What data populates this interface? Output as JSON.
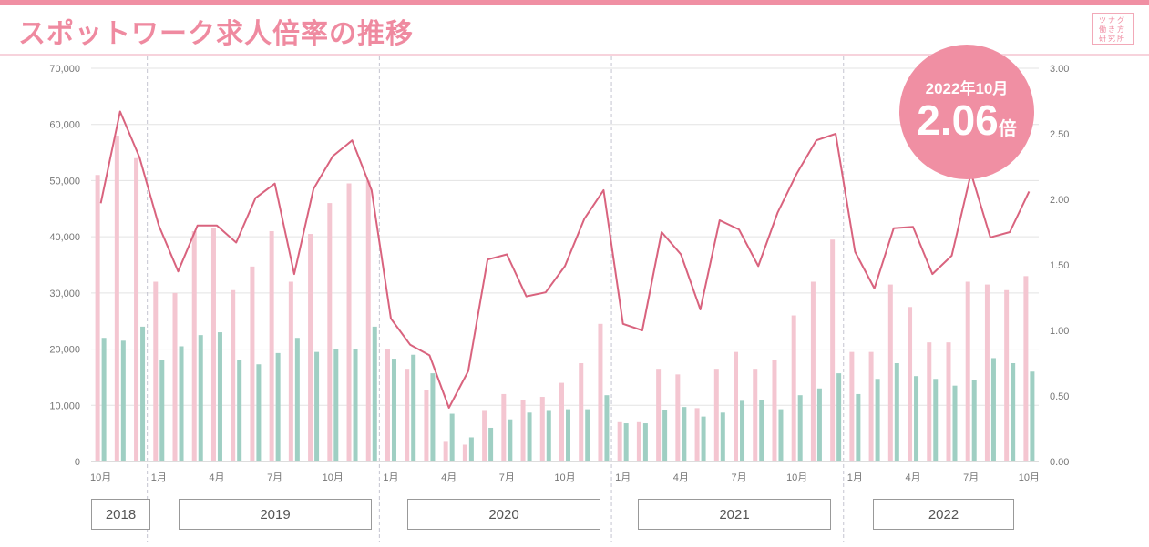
{
  "title": "スポットワーク求人倍率の推移",
  "logo_lines": [
    "ツナグ",
    "働き方",
    "研究所"
  ],
  "badge": {
    "period": "2022年10月",
    "value": "2.06",
    "unit": "倍"
  },
  "years": [
    "2018",
    "2019",
    "2020",
    "2021",
    "2022"
  ],
  "colors": {
    "accent": "#f08fa3",
    "bar1": "#f4c6d1",
    "bar2": "#9fcfc3",
    "line": "#d9637e"
  },
  "chart_data": {
    "type": "bar",
    "x_month_labels": [
      "10月",
      "",
      "",
      "1月",
      "",
      "",
      "4月",
      "",
      "",
      "7月",
      "",
      "",
      "10月",
      "",
      "",
      "1月",
      "",
      "",
      "4月",
      "",
      "",
      "7月",
      "",
      "",
      "10月",
      "",
      "",
      "1月",
      "",
      "",
      "4月",
      "",
      "",
      "7月",
      "",
      "",
      "10月",
      "",
      "",
      "1月",
      "",
      "",
      "4月",
      "",
      "",
      "7月",
      "",
      "",
      "10月"
    ],
    "left_axis": {
      "ylim": [
        0,
        70000
      ],
      "ticks": [
        "0",
        "10,000",
        "20,000",
        "30,000",
        "40,000",
        "50,000",
        "60,000",
        "70,000"
      ]
    },
    "right_axis": {
      "ylim": [
        0,
        3.0
      ],
      "ticks": [
        "0.00",
        "0.50",
        "1.00",
        "1.50",
        "2.00",
        "2.50",
        "3.00"
      ]
    },
    "series": [
      {
        "values": [
          51000,
          58000,
          54000,
          32000,
          30000,
          41000,
          41500,
          30500,
          34700,
          41000,
          32000,
          40500,
          46000,
          49500,
          50000,
          20000,
          16500,
          12800,
          3500,
          3000,
          9000,
          12000,
          11000,
          11500,
          14000,
          17500,
          24500,
          7000,
          7000,
          16500,
          15500,
          9500,
          16500,
          19500,
          16500,
          18000,
          26000,
          32000,
          39500,
          19500,
          19500,
          31500,
          27500,
          21200,
          21200,
          32000,
          31500,
          30500,
          33000
        ]
      },
      {
        "values": [
          22000,
          21500,
          24000,
          18000,
          20500,
          22500,
          23000,
          18000,
          17300,
          19300,
          22000,
          19500,
          20000,
          20000,
          24000,
          18300,
          19000,
          15700,
          8500,
          4300,
          6000,
          7500,
          8700,
          9000,
          9300,
          9300,
          11800,
          6800,
          6800,
          9200,
          9700,
          8000,
          8700,
          10800,
          11000,
          9300,
          11800,
          13000,
          15700,
          12000,
          14700,
          17500,
          15200,
          14700,
          13500,
          14500,
          18400,
          17500,
          16000
        ]
      },
      {
        "values": [
          1.97,
          2.67,
          2.32,
          1.8,
          1.45,
          1.8,
          1.8,
          1.67,
          2.01,
          2.12,
          1.43,
          2.08,
          2.33,
          2.45,
          2.07,
          1.09,
          0.89,
          0.81,
          0.41,
          0.69,
          1.54,
          1.58,
          1.26,
          1.29,
          1.49,
          1.85,
          2.07,
          1.05,
          1.0,
          1.75,
          1.58,
          1.16,
          1.84,
          1.77,
          1.49,
          1.9,
          2.2,
          2.45,
          2.5,
          1.6,
          1.32,
          1.78,
          1.79,
          1.43,
          1.57,
          2.2,
          1.71,
          1.75,
          2.06
        ]
      }
    ]
  }
}
